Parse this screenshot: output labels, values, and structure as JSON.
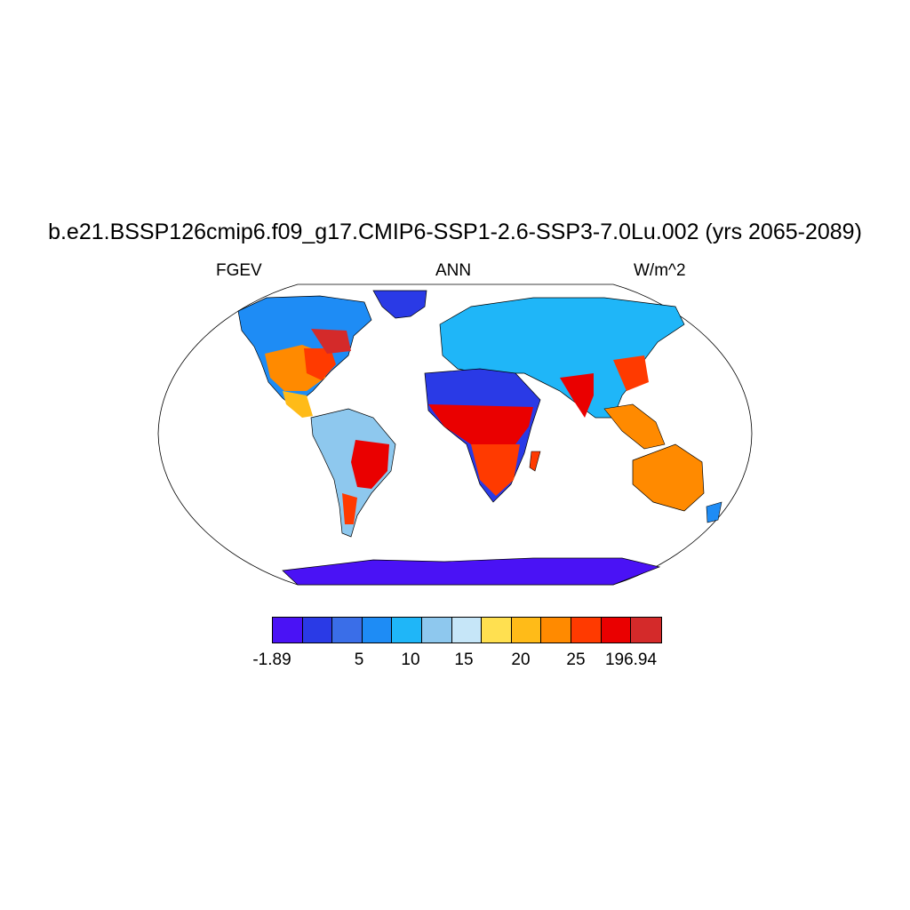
{
  "title": "b.e21.BSSP126cmip6.f09_g17.CMIP6-SSP1-2.6-SSP3-7.0Lu.002 (yrs 2065-2089)",
  "left_label": "FGEV",
  "center_label": "ANN",
  "right_label": "W/m^2",
  "colorbar": {
    "colors": [
      "#4a12f5",
      "#2a3ae6",
      "#3a6ee8",
      "#1e8cf5",
      "#1fb6f8",
      "#8ec8ee",
      "#c6e6f8",
      "#ffe050",
      "#ffbb18",
      "#ff8a00",
      "#ff3a00",
      "#ea0000",
      "#d42a2a"
    ],
    "tick_labels": [
      "-1.89",
      "5",
      "10",
      "15",
      "20",
      "25",
      "196.94"
    ]
  }
}
